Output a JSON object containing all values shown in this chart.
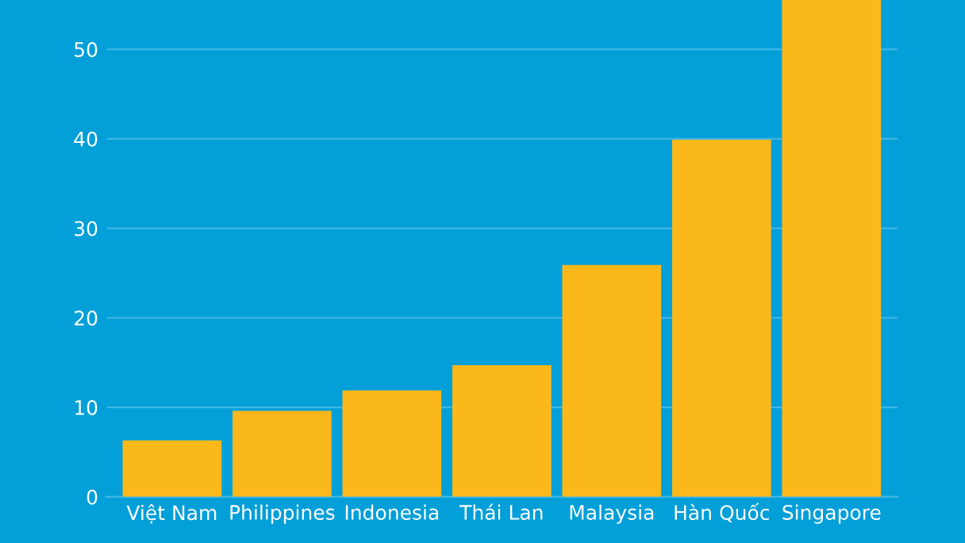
{
  "chart_data": {
    "type": "bar",
    "categories": [
      "Việt Nam",
      "Philippines",
      "Indonesia",
      "Thái Lan",
      "Malaysia",
      "Hàn Quốc",
      "Singapore"
    ],
    "values": [
      6.3,
      9.6,
      11.9,
      14.7,
      25.9,
      39.9,
      55.5
    ],
    "color": "#fbb81b",
    "ylim": [
      0,
      55.5
    ],
    "yticks": [
      0,
      10,
      20,
      30,
      40,
      50
    ],
    "grid": "y"
  }
}
